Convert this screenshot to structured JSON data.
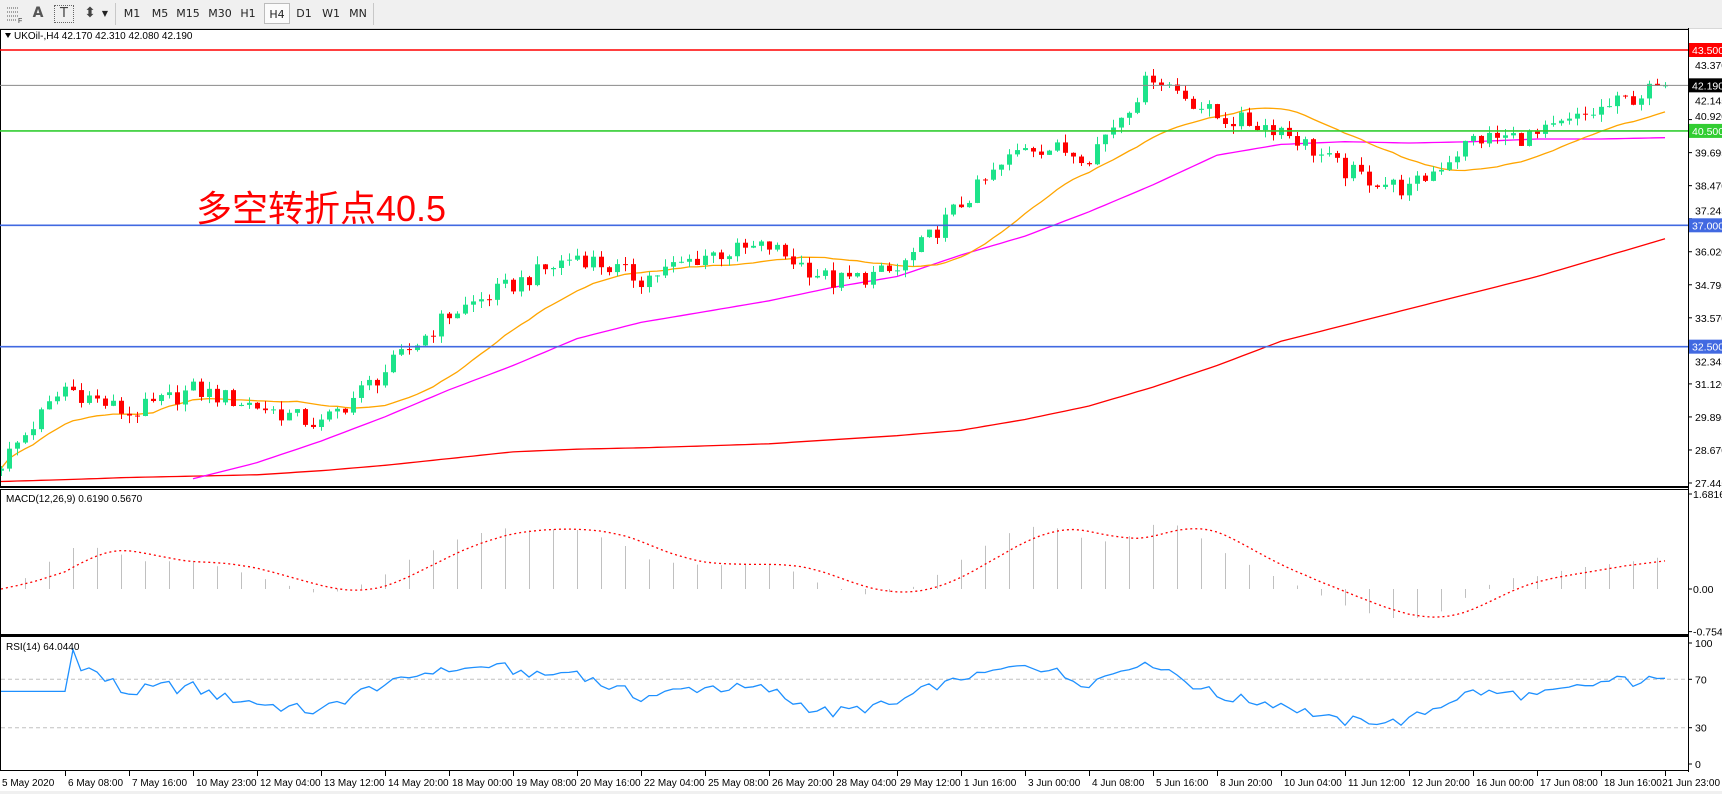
{
  "toolbar": {
    "tools": [
      {
        "name": "period-separators-icon",
        "glyph": "F"
      },
      {
        "name": "text-tool-icon",
        "glyph": "A"
      },
      {
        "name": "text-label-tool-icon",
        "glyph": "T"
      },
      {
        "name": "arrows-tool-icon",
        "glyph": "⬍"
      }
    ],
    "periods": [
      "M1",
      "M5",
      "M15",
      "M30",
      "H1",
      "H4",
      "D1",
      "W1",
      "MN"
    ],
    "active_period": "H4"
  },
  "chart": {
    "symbol_info": "UKOil-,H4  42.170 42.310 42.080 42.190",
    "annotation": "多空转折点40.5",
    "annotation_color": "#ff0000",
    "price_ticks": [
      "43.370",
      "42.145",
      "40.920",
      "39.695",
      "38.470",
      "37.245",
      "36.020",
      "34.795",
      "33.570",
      "32.345",
      "31.120",
      "29.895",
      "28.670",
      "27.445"
    ],
    "levels": [
      {
        "price": 43.5,
        "label": "43.500",
        "color": "#ff0000"
      },
      {
        "price": 40.5,
        "label": "40.500",
        "color": "#32cd32"
      },
      {
        "price": 37.0,
        "label": "37.000",
        "color": "#4169e1"
      },
      {
        "price": 32.5,
        "label": "32.500",
        "color": "#4169e1"
      }
    ],
    "bid": {
      "price": 42.19,
      "label": "42.190"
    },
    "last_bar": {
      "open": 42.17,
      "high": 42.31,
      "low": 42.08,
      "close": 42.19
    },
    "time_labels": [
      "5 May 2020",
      "6 May 08:00",
      "7 May 16:00",
      "10 May 23:00",
      "12 May 04:00",
      "13 May 12:00",
      "14 May 20:00",
      "18 May 00:00",
      "19 May 08:00",
      "20 May 16:00",
      "22 May 04:00",
      "25 May 08:00",
      "26 May 20:00",
      "28 May 04:00",
      "29 May 12:00",
      "1 Jun 16:00",
      "3 Jun 00:00",
      "4 Jun 08:00",
      "5 Jun 16:00",
      "8 Jun 20:00",
      "10 Jun 04:00",
      "11 Jun 12:00",
      "12 Jun 20:00",
      "16 Jun 00:00",
      "17 Jun 08:00",
      "18 Jun 16:00",
      "21 Jun 23:00"
    ],
    "closes_at_labels": [
      28.2,
      31.0,
      30.0,
      30.9,
      30.3,
      29.6,
      31.6,
      33.7,
      34.8,
      35.9,
      35.0,
      35.9,
      36.2,
      34.9,
      35.3,
      37.8,
      40.0,
      39.6,
      42.6,
      41.0,
      40.6,
      39.0,
      38.3,
      40.2,
      40.3,
      41.3,
      42.19
    ],
    "ma_magenta_at_labels": [
      null,
      null,
      null,
      27.6,
      28.2,
      29.0,
      29.9,
      30.9,
      31.8,
      32.8,
      33.4,
      33.8,
      34.2,
      34.7,
      35.1,
      35.9,
      36.6,
      37.5,
      38.5,
      39.6,
      40.0,
      40.1,
      40.05,
      40.1,
      40.2,
      40.2,
      40.25
    ],
    "ma_red_at_labels": [
      27.5,
      27.57,
      27.65,
      27.7,
      27.75,
      27.9,
      28.1,
      28.35,
      28.6,
      28.7,
      28.75,
      28.82,
      28.9,
      29.05,
      29.2,
      29.4,
      29.8,
      30.3,
      31.0,
      31.8,
      32.7,
      33.3,
      33.9,
      34.5,
      35.1,
      35.8,
      36.5
    ],
    "colors": {
      "bull": "#1de38a",
      "bear": "#ff0000",
      "ma_orange": "#ffa500",
      "ma_magenta": "#ff00ff",
      "ma_red": "#ff0000"
    }
  },
  "macd": {
    "label": "MACD(12,26,9) 0.6190 0.5670",
    "ticks": [
      "1.6816",
      "0.00",
      "-0.7544"
    ],
    "range": [
      -0.7544,
      1.6816
    ]
  },
  "rsi": {
    "label": "RSI(14) 64.0440",
    "ticks": [
      "100",
      "70",
      "30",
      "0"
    ],
    "levels": [
      70,
      30
    ],
    "line_color": "#1e90ff"
  }
}
